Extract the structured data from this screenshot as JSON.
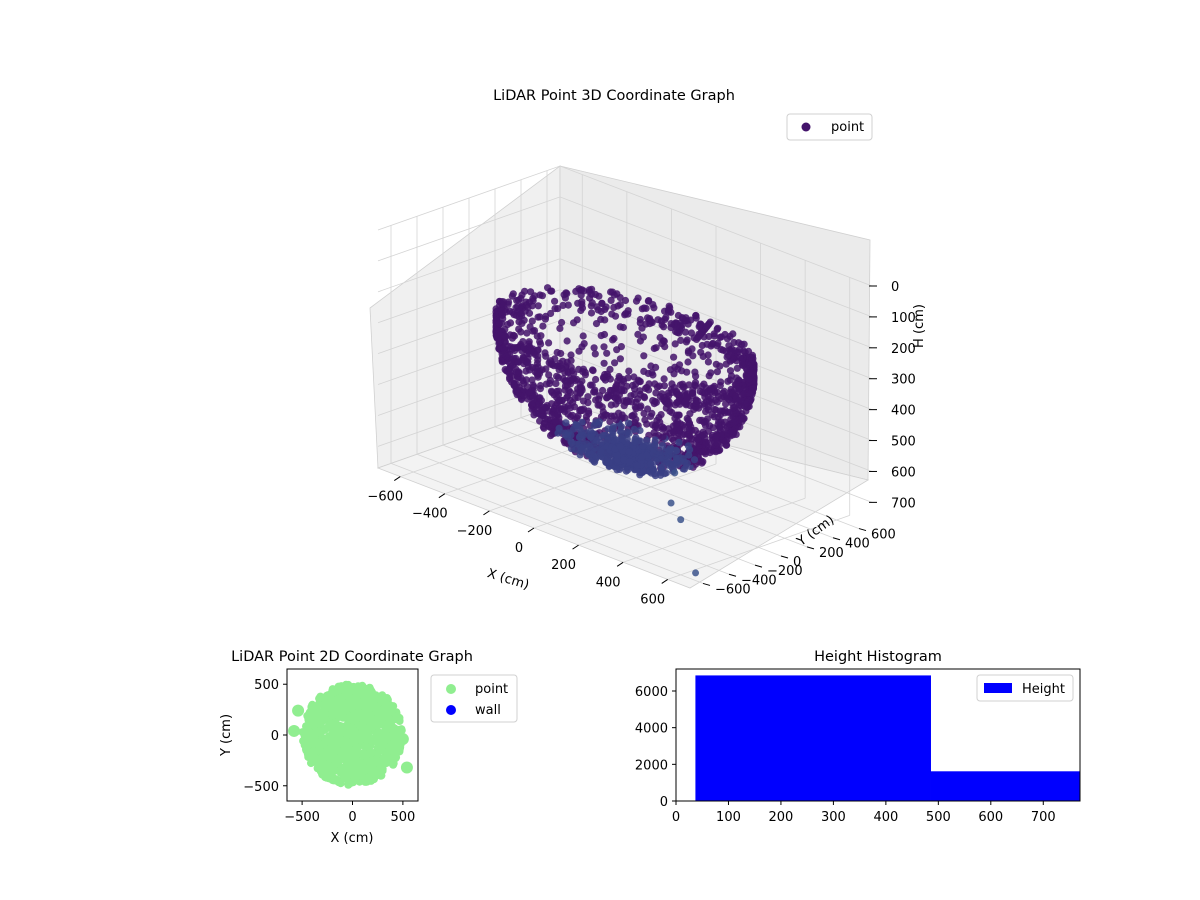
{
  "colors": {
    "point3d": "#44146b",
    "point3d_light": "#3a3f85",
    "point2d": "#90ee90",
    "wall": "#0000ff",
    "hist": "#0000ff",
    "grid": "#b0b0b0",
    "pane": "#f2f2f2",
    "pane_dark": "#e8e8e8"
  },
  "chart_data": [
    {
      "type": "scatter",
      "projection": "3d",
      "title": "LiDAR Point 3D Coordinate Graph",
      "xlabel": "X (cm)",
      "ylabel": "Y (cm)",
      "zlabel": "H (cm)",
      "xlim": [
        -700,
        700
      ],
      "ylim": [
        -700,
        700
      ],
      "zlim": [
        0,
        770
      ],
      "z_inverted": true,
      "xticks": [
        "−600",
        "−400",
        "−200",
        "0",
        "200",
        "400",
        "600"
      ],
      "yticks": [
        "−600",
        "−400",
        "−200",
        "0",
        "200",
        "400",
        "600"
      ],
      "zticks": [
        "0",
        "100",
        "200",
        "300",
        "400",
        "500",
        "600",
        "700"
      ],
      "legend": {
        "entries": [
          "point"
        ],
        "placement": "top-right"
      },
      "grid": true,
      "series": [
        {
          "name": "point",
          "shape": "hemispherical scan cloud, radius ≈ 500 cm, height 0–770 cm"
        }
      ]
    },
    {
      "type": "scatter",
      "title": "LiDAR Point 2D Coordinate Graph",
      "xlabel": "X (cm)",
      "ylabel": "Y (cm)",
      "xlim": [
        -650,
        650
      ],
      "ylim": [
        -650,
        650
      ],
      "xticks": [
        "−500",
        "0",
        "500"
      ],
      "yticks": [
        "500",
        "0",
        "−500"
      ],
      "legend": {
        "entries": [
          "point",
          "wall"
        ],
        "placement": "outside right"
      },
      "series": [
        {
          "name": "point",
          "shape": "filled disc, radius ≈ 500 cm"
        },
        {
          "name": "wall"
        }
      ]
    },
    {
      "type": "bar",
      "subtype": "histogram",
      "title": "Height Histogram",
      "xlim": [
        0,
        770
      ],
      "ylim": [
        0,
        7200
      ],
      "xticks": [
        "0",
        "100",
        "200",
        "300",
        "400",
        "500",
        "600",
        "700"
      ],
      "yticks": [
        "0",
        "2000",
        "4000",
        "6000"
      ],
      "legend": {
        "entries": [
          "Height"
        ],
        "placement": "top-right"
      },
      "series": [
        {
          "name": "Height",
          "bins": [
            {
              "x0": 37,
              "x1": 486,
              "count": 6850
            },
            {
              "x0": 486,
              "x1": 770,
              "count": 1620
            }
          ]
        }
      ]
    }
  ]
}
